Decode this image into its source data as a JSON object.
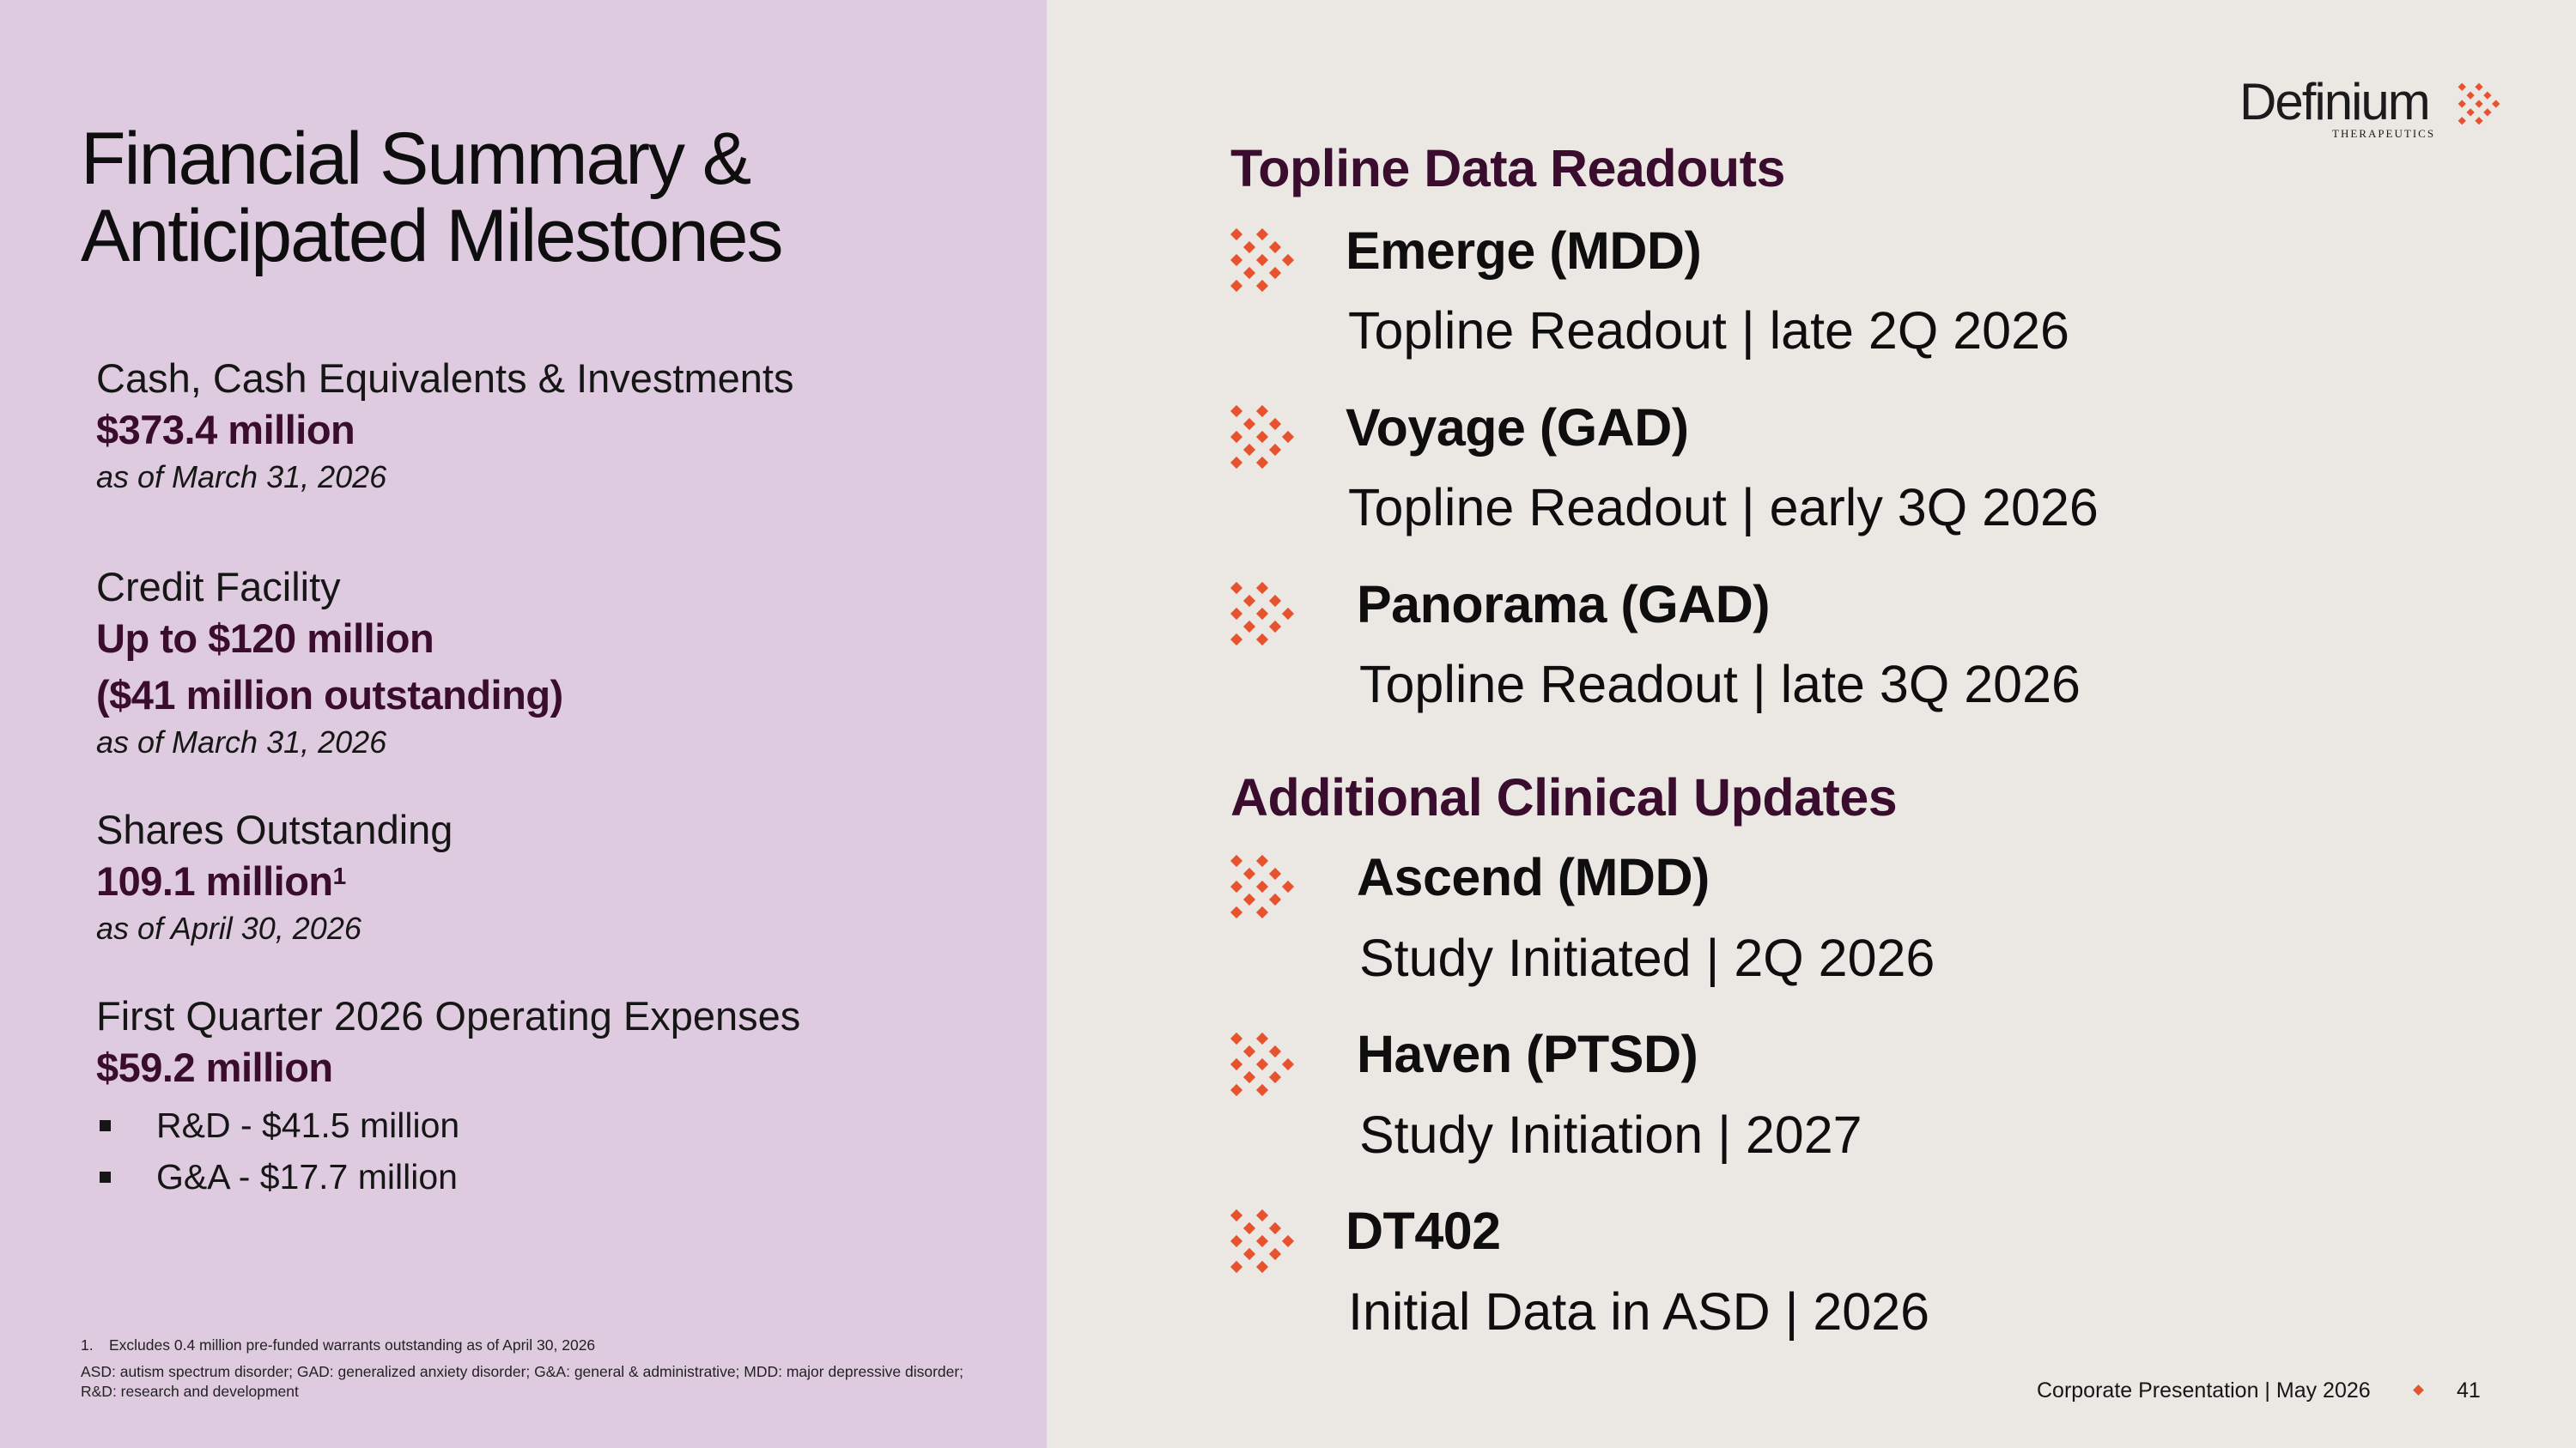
{
  "slide": {
    "title_line1": "Financial Summary &",
    "title_line2": "Anticipated Milestones"
  },
  "financials": {
    "cash": {
      "label": "Cash, Cash Equivalents & Investments",
      "value": "$373.4 million",
      "note": "as of March 31, 2026"
    },
    "credit": {
      "label": "Credit Facility",
      "value_line1": "Up to $120 million",
      "value_line2": "($41 million outstanding)",
      "note": "as of March 31, 2026"
    },
    "shares": {
      "label": "Shares Outstanding",
      "value": "109.1 million",
      "sup": "1",
      "note": "as of April 30, 2026"
    },
    "opex": {
      "label": "First Quarter 2026 Operating Expenses",
      "value": "$59.2 million",
      "bullets": [
        "R&D - $41.5 million",
        "G&A - $17.7 million"
      ]
    }
  },
  "footnotes": {
    "fn1_number": "1.",
    "fn1_text": "Excludes 0.4 million pre-funded warrants outstanding as of  April 30, 2026",
    "abbreviations": "ASD: autism spectrum disorder; GAD: generalized anxiety disorder; G&A: general & administrative; MDD: major depressive disorder; R&D: research and development"
  },
  "logo": {
    "wordmark": "Definium",
    "subtitle": "THERAPEUTICS",
    "accent_color": "#e8532f"
  },
  "topline": {
    "heading": "Topline Data Readouts",
    "items": [
      {
        "name": "Emerge (MDD)",
        "detail": "Topline Readout | late 2Q 2026",
        "icon": "diamond-grid-icon"
      },
      {
        "name": "Voyage (GAD)",
        "detail": "Topline Readout | early 3Q 2026",
        "icon": "diamond-grid-icon"
      },
      {
        "name": "Panorama (GAD)",
        "detail": "Topline Readout | late 3Q 2026",
        "icon": "diamond-grid-icon"
      }
    ]
  },
  "additional": {
    "heading": "Additional Clinical Updates",
    "items": [
      {
        "name": "Ascend (MDD)",
        "detail": "Study Initiated | 2Q 2026",
        "icon": "diamond-grid-icon"
      },
      {
        "name": "Haven (PTSD)",
        "detail": "Study Initiation | 2027",
        "icon": "diamond-grid-icon"
      },
      {
        "name": "DT402",
        "detail": "Initial Data in ASD | 2026",
        "icon": "diamond-grid-icon"
      }
    ]
  },
  "footer": {
    "text": "Corporate Presentation | May 2026",
    "page_number": "41"
  },
  "colors": {
    "left_bg": "#dfcbe0",
    "right_bg": "#ebe8e4",
    "heading_plum": "#3a0c2e",
    "accent_orange": "#e8532f"
  }
}
